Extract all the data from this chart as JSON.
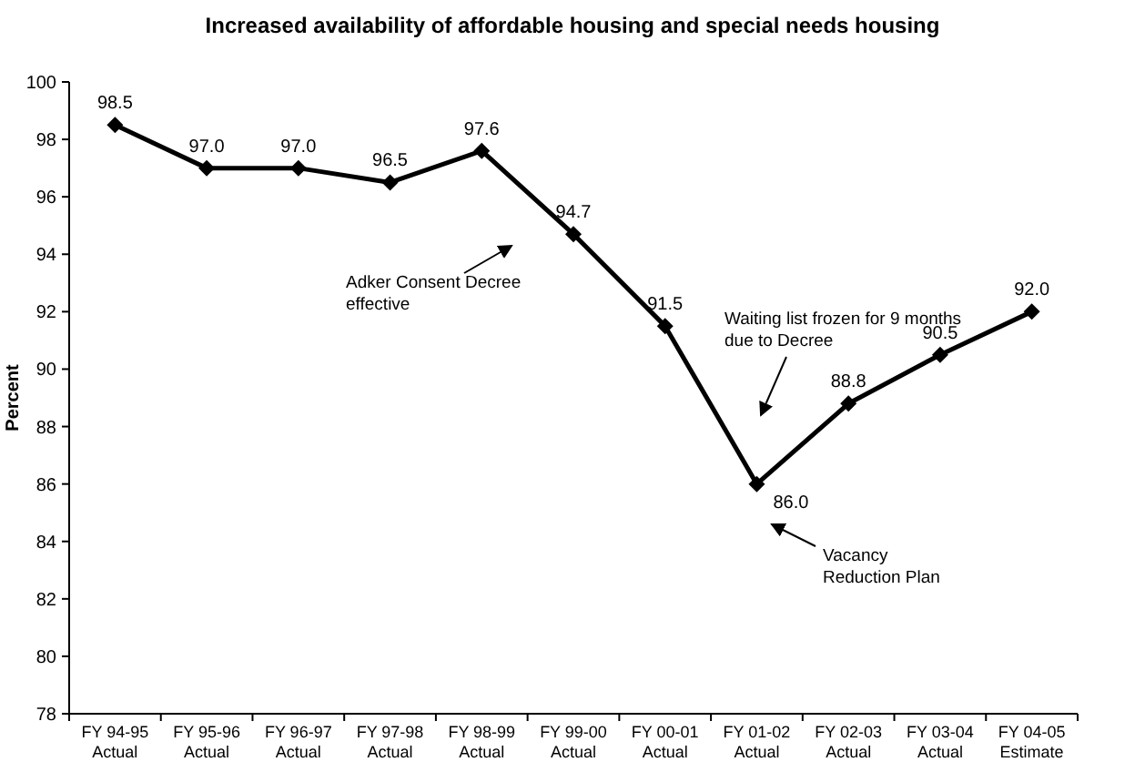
{
  "chart_data": {
    "type": "line",
    "title": "Increased availability of affordable housing and special needs housing",
    "ylabel": "Percent",
    "categories": [
      "FY 94-95\nActual",
      "FY 95-96\nActual",
      "FY 96-97\nActual",
      "FY 97-98\nActual",
      "FY 98-99\nActual",
      "FY 99-00\nActual",
      "FY 00-01\nActual",
      "FY 01-02\nActual",
      "FY 02-03\nActual",
      "FY 03-04\nActual",
      "FY 04-05\nEstimate"
    ],
    "series": [
      {
        "color": "#000000",
        "values": [
          98.5,
          97.0,
          97.0,
          96.5,
          97.6,
          94.7,
          91.5,
          86.0,
          88.8,
          90.5,
          92.0
        ],
        "value_labels": [
          "98.5",
          "97.0",
          "97.0",
          "96.5",
          "97.6",
          "94.7",
          "91.5",
          "86.0",
          "88.8",
          "90.5",
          "92.0"
        ]
      }
    ],
    "ylim": [
      78,
      100
    ],
    "yticks": [
      78,
      80,
      82,
      84,
      86,
      88,
      90,
      92,
      94,
      96,
      98,
      100
    ],
    "grid": false,
    "legend": false,
    "marker": "diamond",
    "line_style": "solid",
    "annotations": [
      "Adker Consent Decree effective",
      "Waiting list frozen for 9 months due to Decree",
      "Vacancy Reduction Plan"
    ]
  }
}
